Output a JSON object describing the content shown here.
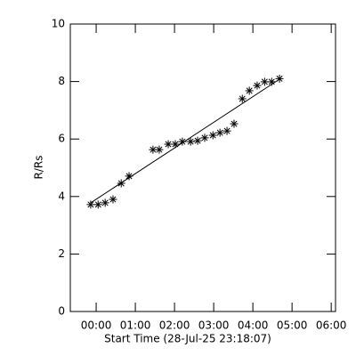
{
  "chart_data": {
    "type": "scatter",
    "xlabel": "Start Time (28-Jul-25 23:18:07)",
    "ylabel": "R/Rs",
    "xlim": [
      -0.66,
      6.11
    ],
    "ylim": [
      0,
      10
    ],
    "xticks": [
      {
        "value": 0,
        "label": "00:00"
      },
      {
        "value": 1,
        "label": "01:00"
      },
      {
        "value": 2,
        "label": "02:00"
      },
      {
        "value": 3,
        "label": "03:00"
      },
      {
        "value": 4,
        "label": "04:00"
      },
      {
        "value": 5,
        "label": "05:00"
      },
      {
        "value": 6,
        "label": "06:00"
      }
    ],
    "yticks": [
      0,
      2,
      4,
      6,
      8,
      10
    ],
    "color": "#000000",
    "x": [
      -0.14,
      0.05,
      0.23,
      0.43,
      0.64,
      0.84,
      1.45,
      1.61,
      1.84,
      2.02,
      2.2,
      2.41,
      2.59,
      2.77,
      2.98,
      3.16,
      3.34,
      3.52,
      3.73,
      3.91,
      4.11,
      4.3,
      4.48,
      4.68
    ],
    "values": [
      3.72,
      3.72,
      3.78,
      3.9,
      4.46,
      4.71,
      5.63,
      5.63,
      5.82,
      5.82,
      5.91,
      5.91,
      5.94,
      6.04,
      6.13,
      6.22,
      6.28,
      6.53,
      7.4,
      7.68,
      7.86,
      7.99,
      7.99,
      8.1
    ],
    "fit": {
      "x": [
        -0.14,
        4.68
      ],
      "values": [
        3.78,
        8.08
      ]
    }
  }
}
